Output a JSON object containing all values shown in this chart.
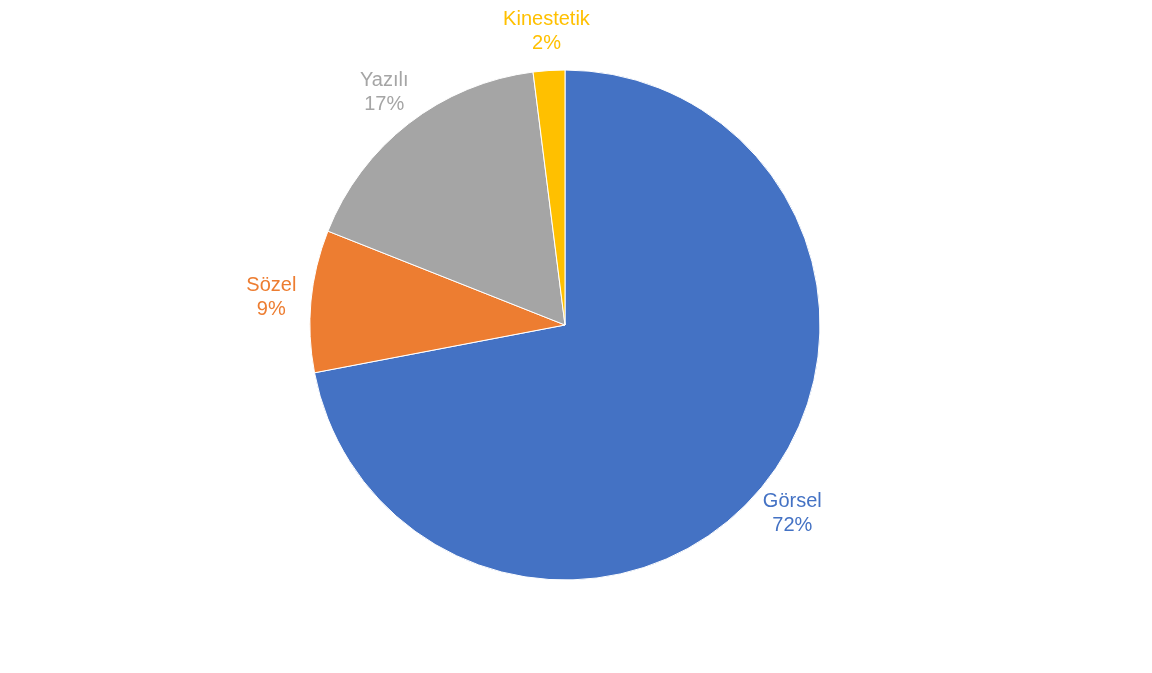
{
  "chart_data": {
    "type": "pie",
    "categories": [
      "Görsel",
      "Sözel",
      "Yazılı",
      "Kinestetik"
    ],
    "values": [
      72,
      9,
      17,
      2
    ],
    "value_labels": [
      "72%",
      "9%",
      "17%",
      "2%"
    ],
    "colors": [
      "#4472c4",
      "#ed7d31",
      "#a5a5a5",
      "#ffc000"
    ],
    "legend": false
  }
}
